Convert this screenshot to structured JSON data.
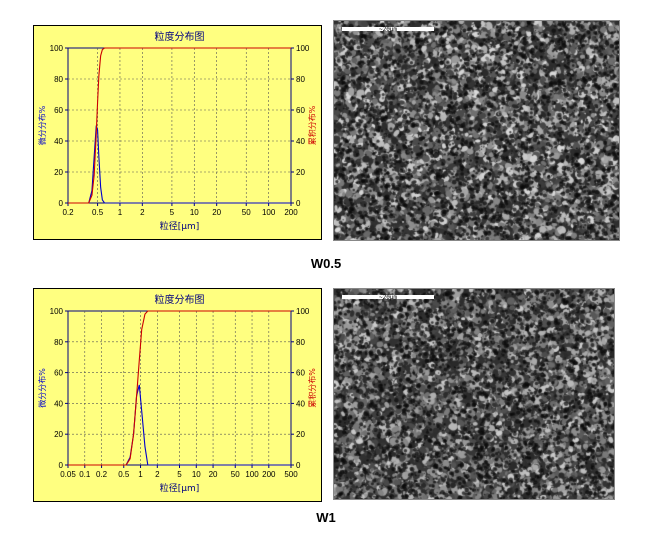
{
  "captions": [
    "W0.5",
    "W1"
  ],
  "sem": [
    {
      "scale_label": "~20µm",
      "seed": 13,
      "brightness": 0.52
    },
    {
      "scale_label": "~20µm",
      "seed": 29,
      "brightness": 0.48
    }
  ],
  "chart_data": [
    {
      "type": "line",
      "title": "粒度分布图",
      "xlabel": "粒径[µm]",
      "ylabel_left": "微分分布%",
      "ylabel_right": "累积分布%",
      "x_scale": "log",
      "x_ticks": [
        0.2,
        0.5,
        1,
        2,
        5,
        10,
        20,
        50,
        100,
        200
      ],
      "x_tick_labels": [
        "0.2",
        "0.5",
        "1",
        "2",
        "5",
        "10",
        "20",
        "50",
        "100",
        "200"
      ],
      "xlim": [
        0.2,
        200
      ],
      "ylim": [
        0,
        100
      ],
      "y_ticks": [
        0,
        20,
        40,
        60,
        80,
        100
      ],
      "grid": true,
      "colors": {
        "differential": "#0000cc",
        "cumulative": "#cc0000",
        "frame": "#000080",
        "background": "#ffff80"
      },
      "series": [
        {
          "axis": "left",
          "color": "#0000cc",
          "x": [
            0.2,
            0.38,
            0.42,
            0.45,
            0.48,
            0.5,
            0.52,
            0.55,
            0.58,
            0.62,
            200
          ],
          "y": [
            0,
            0,
            8,
            30,
            50,
            47,
            30,
            10,
            2,
            0,
            0
          ]
        },
        {
          "axis": "right",
          "color": "#cc0000",
          "x": [
            0.2,
            0.38,
            0.42,
            0.45,
            0.48,
            0.5,
            0.52,
            0.55,
            0.58,
            0.62,
            200
          ],
          "y": [
            0,
            0,
            5,
            18,
            45,
            65,
            82,
            95,
            99,
            100,
            100
          ]
        }
      ]
    },
    {
      "type": "line",
      "title": "粒度分布图",
      "xlabel": "粒径[µm]",
      "ylabel_left": "微分分布%",
      "ylabel_right": "累积分布%",
      "x_scale": "log",
      "x_ticks": [
        0.05,
        0.1,
        0.2,
        0.5,
        1,
        2,
        5,
        10,
        20,
        50,
        100,
        200,
        500
      ],
      "x_tick_labels": [
        "0.05",
        "0.1",
        "0.2",
        "0.5",
        "1",
        "2",
        "5",
        "10",
        "20",
        "50",
        "100",
        "200",
        "500"
      ],
      "xlim": [
        0.05,
        500
      ],
      "ylim": [
        0,
        100
      ],
      "y_ticks": [
        0,
        20,
        40,
        60,
        80,
        100
      ],
      "grid": true,
      "colors": {
        "differential": "#0000cc",
        "cumulative": "#cc0000",
        "frame": "#000080",
        "background": "#ffff80"
      },
      "series": [
        {
          "axis": "left",
          "color": "#0000cc",
          "x": [
            0.05,
            0.55,
            0.65,
            0.75,
            0.85,
            0.95,
            1.05,
            1.2,
            1.35,
            500
          ],
          "y": [
            0,
            0,
            5,
            20,
            45,
            52,
            35,
            12,
            0,
            0
          ]
        },
        {
          "axis": "right",
          "color": "#cc0000",
          "x": [
            0.05,
            0.55,
            0.65,
            0.75,
            0.85,
            0.95,
            1.05,
            1.2,
            1.35,
            500
          ],
          "y": [
            0,
            0,
            4,
            20,
            45,
            68,
            88,
            98,
            100,
            100
          ]
        }
      ]
    }
  ]
}
